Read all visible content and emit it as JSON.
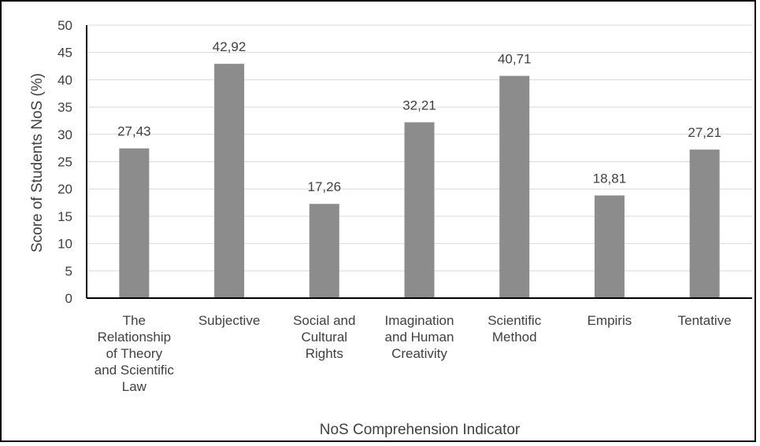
{
  "chart_data": {
    "type": "bar",
    "title": "",
    "xlabel": "NoS Comprehension Indicator",
    "ylabel": "Score of Students NoS (%)",
    "ylim": [
      0,
      50
    ],
    "yticks": [
      0,
      5,
      10,
      15,
      20,
      25,
      30,
      35,
      40,
      45,
      50
    ],
    "grid": true,
    "legend": "none",
    "bar_color": "#8c8c8c",
    "grid_color": "#d9d9d9",
    "text_color": "#404040",
    "categories": [
      [
        "The",
        "Relationship",
        "of Theory",
        "and Scientific",
        "Law"
      ],
      [
        "Subjective"
      ],
      [
        "Social and",
        "Cultural",
        "Rights"
      ],
      [
        "Imagination",
        "and Human",
        "Creativity"
      ],
      [
        "Scientific",
        "Method"
      ],
      [
        "Empiris"
      ],
      [
        "Tentative"
      ]
    ],
    "values": [
      27.43,
      42.92,
      17.26,
      32.21,
      40.71,
      18.81,
      27.21
    ],
    "value_labels": [
      "27,43",
      "42,92",
      "17,26",
      "32,21",
      "40,71",
      "18,81",
      "27,21"
    ]
  }
}
